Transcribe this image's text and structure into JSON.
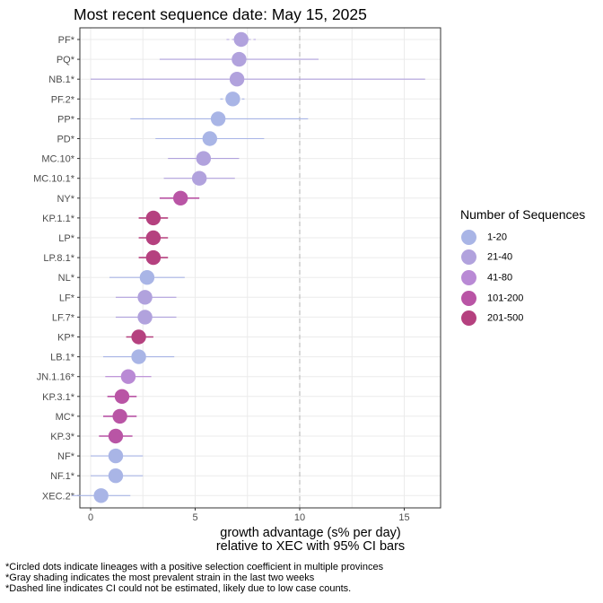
{
  "chart_data": {
    "type": "scatter",
    "title": "Most recent sequence date: May 15, 2025",
    "xlabel_line1": "growth advantage (s% per day)",
    "xlabel_line2": "relative to  XEC  with 95% CI bars",
    "xticks": [
      0,
      5,
      10,
      15
    ],
    "xlim": [
      -1,
      16.8
    ],
    "dashed_line_x": 10,
    "grid": true,
    "legend": {
      "title": "Number of Sequences",
      "placement": "right",
      "items": [
        {
          "label": "1-20",
          "color": "#a9b5e6"
        },
        {
          "label": "21-40",
          "color": "#b1a2dd"
        },
        {
          "label": "41-80",
          "color": "#b98ad5"
        },
        {
          "label": "101-200",
          "color": "#b955a5"
        },
        {
          "label": "201-500",
          "color": "#b5417f"
        }
      ]
    },
    "lineages": [
      {
        "name": "PF*",
        "value": 7.2,
        "lo": 6.5,
        "hi": 7.9,
        "group": "21-40",
        "dashed": true
      },
      {
        "name": "PQ*",
        "value": 7.1,
        "lo": 3.3,
        "hi": 10.9,
        "group": "21-40",
        "dashed": false
      },
      {
        "name": "NB.1*",
        "value": 7.0,
        "lo": 0.0,
        "hi": 16.0,
        "group": "21-40",
        "dashed": false
      },
      {
        "name": "PF.2*",
        "value": 6.8,
        "lo": 6.2,
        "hi": 7.4,
        "group": "1-20",
        "dashed": true
      },
      {
        "name": "PP*",
        "value": 6.1,
        "lo": 1.9,
        "hi": 10.4,
        "group": "1-20",
        "dashed": false
      },
      {
        "name": "PD*",
        "value": 5.7,
        "lo": 3.1,
        "hi": 8.3,
        "group": "1-20",
        "dashed": false
      },
      {
        "name": "MC.10*",
        "value": 5.4,
        "lo": 3.7,
        "hi": 7.1,
        "group": "21-40",
        "dashed": false
      },
      {
        "name": "MC.10.1*",
        "value": 5.2,
        "lo": 3.5,
        "hi": 6.9,
        "group": "21-40",
        "dashed": false
      },
      {
        "name": "NY*",
        "value": 4.3,
        "lo": 3.3,
        "hi": 5.2,
        "group": "101-200",
        "dashed": false
      },
      {
        "name": "KP.1.1*",
        "value": 3.0,
        "lo": 2.3,
        "hi": 3.7,
        "group": "201-500",
        "dashed": false
      },
      {
        "name": "LP*",
        "value": 3.0,
        "lo": 2.3,
        "hi": 3.7,
        "group": "201-500",
        "dashed": false
      },
      {
        "name": "LP.8.1*",
        "value": 3.0,
        "lo": 2.3,
        "hi": 3.7,
        "group": "201-500",
        "dashed": false
      },
      {
        "name": "NL*",
        "value": 2.7,
        "lo": 0.9,
        "hi": 4.5,
        "group": "1-20",
        "dashed": false
      },
      {
        "name": "LF*",
        "value": 2.6,
        "lo": 1.2,
        "hi": 4.1,
        "group": "21-40",
        "dashed": false
      },
      {
        "name": "LF.7*",
        "value": 2.6,
        "lo": 1.2,
        "hi": 4.1,
        "group": "21-40",
        "dashed": false
      },
      {
        "name": "KP*",
        "value": 2.3,
        "lo": 1.7,
        "hi": 3.0,
        "group": "201-500",
        "dashed": false
      },
      {
        "name": "LB.1*",
        "value": 2.3,
        "lo": 0.6,
        "hi": 4.0,
        "group": "1-20",
        "dashed": false
      },
      {
        "name": "JN.1.16*",
        "value": 1.8,
        "lo": 0.7,
        "hi": 2.9,
        "group": "41-80",
        "dashed": false
      },
      {
        "name": "KP.3.1*",
        "value": 1.5,
        "lo": 0.8,
        "hi": 2.2,
        "group": "101-200",
        "dashed": false
      },
      {
        "name": "MC*",
        "value": 1.4,
        "lo": 0.6,
        "hi": 2.2,
        "group": "101-200",
        "dashed": false
      },
      {
        "name": "KP.3*",
        "value": 1.2,
        "lo": 0.4,
        "hi": 2.0,
        "group": "101-200",
        "dashed": false
      },
      {
        "name": "NF*",
        "value": 1.2,
        "lo": 0.0,
        "hi": 2.5,
        "group": "1-20",
        "dashed": false
      },
      {
        "name": "NF.1*",
        "value": 1.2,
        "lo": 0.0,
        "hi": 2.5,
        "group": "1-20",
        "dashed": false
      },
      {
        "name": "XEC.2*",
        "value": 0.5,
        "lo": -0.9,
        "hi": 1.9,
        "group": "1-20",
        "dashed": false
      }
    ]
  },
  "footnotes": [
    "*Circled dots indicate lineages with a positive selection coefficient in multiple provinces",
    "*Gray shading indicates the most prevalent strain in the last two weeks",
    "*Dashed line indicates CI could not be estimated, likely due to low case counts."
  ]
}
